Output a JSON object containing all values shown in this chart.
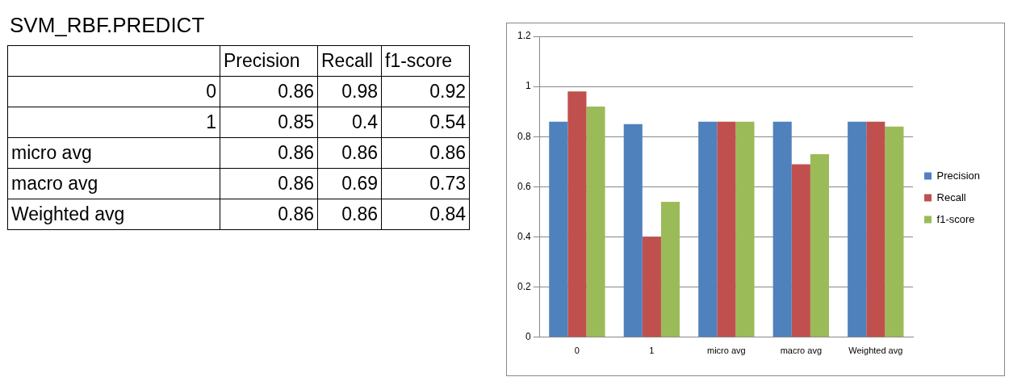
{
  "chart_data": [
    {
      "type": "other",
      "title": "SVM_RBF.PREDICT",
      "categories": [
        "0",
        "1",
        "micro avg",
        "macro avg",
        "Weighted avg"
      ],
      "series": [
        {
          "name": "Precision",
          "values": [
            0.86,
            0.85,
            0.86,
            0.86,
            0.86
          ]
        },
        {
          "name": "Recall",
          "values": [
            0.98,
            0.4,
            0.86,
            0.69,
            0.86
          ]
        },
        {
          "name": "f1-score",
          "values": [
            0.92,
            0.54,
            0.86,
            0.73,
            0.84
          ]
        }
      ],
      "data_labels": true
    },
    {
      "type": "bar",
      "categories": [
        "0",
        "1",
        "micro avg",
        "macro avg",
        "Weighted avg"
      ],
      "series": [
        {
          "name": "Precision",
          "color": "#4f81bd",
          "values": [
            0.86,
            0.85,
            0.86,
            0.86,
            0.86
          ]
        },
        {
          "name": "Recall",
          "color": "#c0504d",
          "values": [
            0.98,
            0.4,
            0.86,
            0.69,
            0.86
          ]
        },
        {
          "name": "f1-score",
          "color": "#9bbb59",
          "values": [
            0.92,
            0.54,
            0.86,
            0.73,
            0.84
          ]
        }
      ],
      "ylim": [
        0,
        1.2
      ],
      "yticks": [
        0,
        0.2,
        0.4,
        0.6,
        0.8,
        1,
        1.2
      ],
      "grid": "y",
      "legend": "right"
    }
  ]
}
